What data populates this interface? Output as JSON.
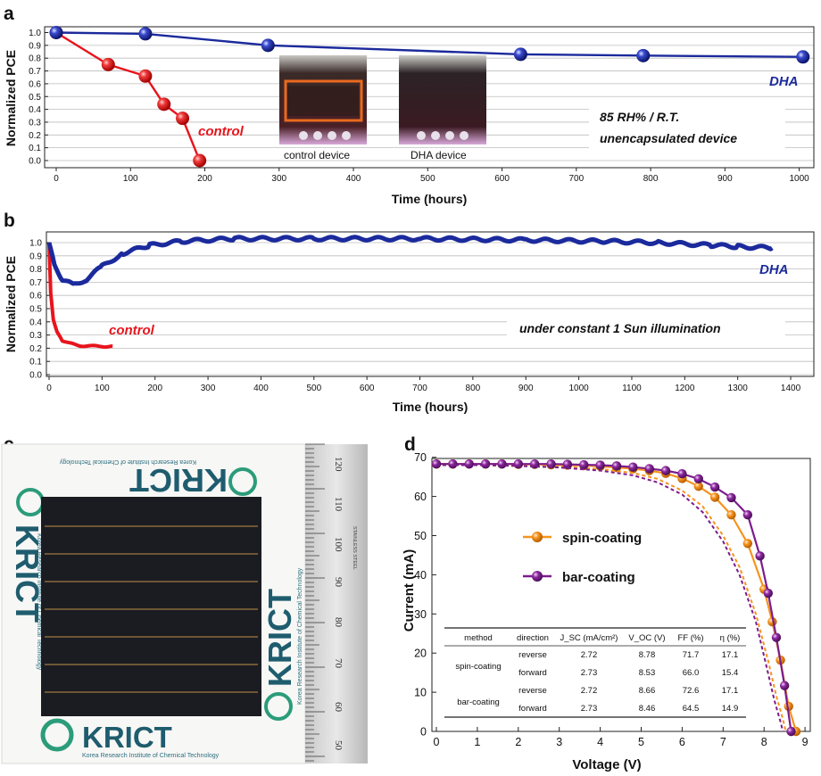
{
  "panels": {
    "a": "a",
    "b": "b",
    "c": "c",
    "d": "d"
  },
  "chart_data": [
    {
      "id": "a",
      "type": "line",
      "ylabel": "Normalized PCE",
      "xlabel": "Time (hours)",
      "xlim": [
        0,
        1020
      ],
      "ylim": [
        0,
        1.05
      ],
      "xticks": [
        "0",
        "100",
        "200",
        "300",
        "400",
        "500",
        "600",
        "700",
        "800",
        "900",
        "1000"
      ],
      "yticks": [
        "0.0",
        "0.1",
        "0.2",
        "0.3",
        "0.4",
        "0.5",
        "0.6",
        "0.7",
        "0.8",
        "0.9",
        "1.0"
      ],
      "grid": true,
      "series": [
        {
          "name": "control",
          "color": "#e8141c",
          "x": [
            0,
            70,
            120,
            145,
            170,
            193
          ],
          "y": [
            1.0,
            0.75,
            0.66,
            0.44,
            0.33,
            0.0
          ]
        },
        {
          "name": "DHA",
          "color": "#1b2a9c",
          "x": [
            0,
            120,
            285,
            625,
            790,
            1005
          ],
          "y": [
            1.0,
            0.99,
            0.9,
            0.83,
            0.82,
            0.81
          ]
        }
      ],
      "annotations": [
        "85 RH% / R.T.",
        "unencapsulated device"
      ],
      "inset_captions": [
        "control device",
        "DHA device"
      ]
    },
    {
      "id": "b",
      "type": "line",
      "ylabel": "Normalized PCE",
      "xlabel": "Time (hours)",
      "xlim": [
        0,
        1400
      ],
      "ylim": [
        0,
        1.08
      ],
      "xticks": [
        "0",
        "100",
        "200",
        "300",
        "400",
        "500",
        "600",
        "700",
        "800",
        "900",
        "1000",
        "1100",
        "1200",
        "1300",
        "1400"
      ],
      "yticks": [
        "0.0",
        "0.1",
        "0.2",
        "0.3",
        "0.4",
        "0.5",
        "0.6",
        "0.7",
        "0.8",
        "0.9",
        "1.0"
      ],
      "grid": true,
      "series": [
        {
          "name": "control",
          "color": "#e8141c",
          "x": [
            0,
            3,
            8,
            15,
            25,
            40,
            60,
            80,
            100,
            120
          ],
          "y": [
            1.0,
            0.62,
            0.42,
            0.32,
            0.26,
            0.235,
            0.22,
            0.215,
            0.215,
            0.215
          ]
        },
        {
          "name": "DHA",
          "color": "#1b2a9c",
          "x": [
            0,
            10,
            25,
            45,
            70,
            100,
            140,
            190,
            250,
            350,
            500,
            700,
            900,
            1050,
            1150,
            1250,
            1300,
            1365
          ],
          "y": [
            1.0,
            0.83,
            0.72,
            0.68,
            0.72,
            0.82,
            0.92,
            0.98,
            1.01,
            1.03,
            1.03,
            1.03,
            1.02,
            1.01,
            1.0,
            0.98,
            0.97,
            0.96
          ]
        }
      ],
      "annotations": [
        "under constant 1 Sun illumination"
      ]
    },
    {
      "id": "d",
      "type": "line",
      "ylabel": "Current (mA)",
      "xlabel": "Voltage (V)",
      "xlim": [
        0,
        9
      ],
      "ylim": [
        0,
        70
      ],
      "xticks": [
        "0",
        "1",
        "2",
        "3",
        "4",
        "5",
        "6",
        "7",
        "8",
        "9"
      ],
      "yticks": [
        "0",
        "10",
        "20",
        "30",
        "40",
        "50",
        "60",
        "70"
      ],
      "series": [
        {
          "name": "spin-coating",
          "direction": "reverse",
          "color": "#f7931e",
          "dashed": false,
          "x": [
            0,
            0.4,
            0.8,
            1.2,
            1.6,
            2.0,
            2.4,
            2.8,
            3.2,
            3.6,
            4.0,
            4.4,
            4.8,
            5.2,
            5.6,
            6.0,
            6.4,
            6.8,
            7.2,
            7.6,
            8.0,
            8.2,
            8.4,
            8.6,
            8.78
          ],
          "y": [
            68.3,
            68.3,
            68.3,
            68.3,
            68.3,
            68.2,
            68.2,
            68.1,
            68.0,
            67.9,
            67.7,
            67.4,
            67.1,
            66.6,
            65.9,
            64.6,
            62.6,
            59.8,
            55.3,
            48.0,
            36.3,
            28.0,
            18.2,
            6.4,
            0.0
          ]
        },
        {
          "name": "spin-coating",
          "direction": "forward",
          "color": "#f7931e",
          "dashed": true,
          "x": [
            0,
            1,
            2,
            3,
            4,
            4.8,
            5.4,
            6.0,
            6.5,
            7.0,
            7.4,
            7.8,
            8.1,
            8.3,
            8.45,
            8.53
          ],
          "y": [
            68.0,
            68.0,
            67.8,
            67.6,
            67.0,
            66.0,
            64.5,
            61.5,
            57.5,
            50.0,
            42.0,
            30.0,
            18.0,
            9.0,
            3.5,
            0.0
          ]
        },
        {
          "name": "bar-coating",
          "direction": "reverse",
          "color": "#7b1c8c",
          "dashed": false,
          "x": [
            0,
            0.4,
            0.8,
            1.2,
            1.6,
            2.0,
            2.4,
            2.8,
            3.2,
            3.6,
            4.0,
            4.4,
            4.8,
            5.2,
            5.6,
            6.0,
            6.4,
            6.8,
            7.2,
            7.6,
            7.9,
            8.1,
            8.3,
            8.5,
            8.66
          ],
          "y": [
            68.3,
            68.3,
            68.3,
            68.3,
            68.3,
            68.3,
            68.3,
            68.3,
            68.2,
            68.1,
            68.0,
            67.8,
            67.5,
            67.1,
            66.6,
            65.8,
            64.5,
            62.4,
            59.7,
            55.3,
            44.8,
            35.3,
            24.0,
            11.7,
            0.0
          ]
        },
        {
          "name": "bar-coating",
          "direction": "forward",
          "color": "#7b1c8c",
          "dashed": true,
          "x": [
            0,
            1,
            2,
            3,
            4,
            4.8,
            5.4,
            6.0,
            6.5,
            7.0,
            7.4,
            7.8,
            8.05,
            8.25,
            8.4,
            8.46
          ],
          "y": [
            68.0,
            68.0,
            67.8,
            67.4,
            66.6,
            65.4,
            63.6,
            60.5,
            56.0,
            48.5,
            40.0,
            28.0,
            17.0,
            8.0,
            2.5,
            0.0
          ]
        }
      ],
      "legend": [
        "spin-coating",
        "bar-coating"
      ],
      "table": {
        "headers": [
          "method",
          "direction",
          "J_SC (mA/cm²)",
          "V_OC (V)",
          "FF (%)",
          "η (%)"
        ],
        "rows": [
          [
            "spin-coating",
            "reverse",
            "2.72",
            "8.78",
            "71.7",
            "17.1"
          ],
          [
            "spin-coating",
            "forward",
            "2.73",
            "8.53",
            "66.0",
            "15.4"
          ],
          [
            "bar-coating",
            "reverse",
            "2.72",
            "8.66",
            "72.6",
            "17.1"
          ],
          [
            "bar-coating",
            "forward",
            "2.73",
            "8.46",
            "64.5",
            "14.9"
          ]
        ]
      }
    }
  ],
  "photo_c": {
    "logo_text": "KRICT",
    "logo_subtext": "Korea Research Institute of Chemical Technology",
    "ruler_labels": [
      "120",
      "110",
      "100",
      "90",
      "80",
      "70",
      "60",
      "50"
    ],
    "ruler_brand": "STAINLESS STEEL"
  }
}
